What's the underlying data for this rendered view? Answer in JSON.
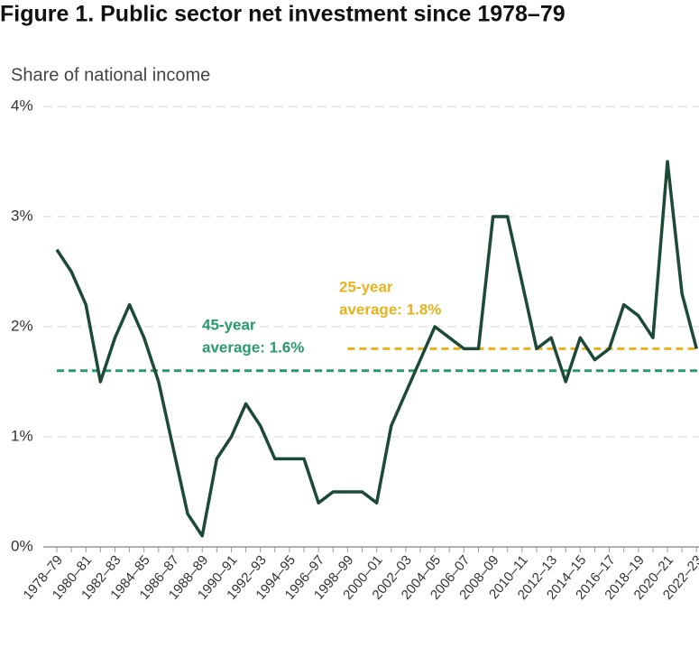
{
  "chart_data": {
    "type": "line",
    "title": "Figure 1. Public sector net investment since 1978–79",
    "subtitle": "Share of national income",
    "categories": [
      "1978–79",
      null,
      "1980–81",
      null,
      "1982–83",
      null,
      "1984–85",
      null,
      "1986–87",
      null,
      "1988–89",
      null,
      "1990–91",
      null,
      "1992–93",
      null,
      "1994–95",
      null,
      "1996–97",
      null,
      "1998–99",
      null,
      "2000–01",
      null,
      "2002–03",
      null,
      "2004–05",
      null,
      "2006–07",
      null,
      "2008–09",
      null,
      "2010–11",
      null,
      "2012–13",
      null,
      "2014–15",
      null,
      "2016–17",
      null,
      "2018–19",
      null,
      "2020–21",
      null,
      "2022–23"
    ],
    "series": [
      {
        "color": "#1c4a36",
        "values": [
          2.7,
          2.5,
          2.2,
          1.5,
          1.9,
          2.2,
          1.9,
          1.5,
          0.9,
          0.3,
          0.1,
          0.8,
          1.0,
          1.3,
          1.1,
          0.8,
          0.8,
          0.8,
          0.4,
          0.5,
          0.5,
          0.5,
          0.4,
          1.1,
          1.4,
          1.7,
          2.0,
          1.9,
          1.8,
          1.8,
          3.0,
          3.0,
          2.4,
          1.8,
          1.9,
          1.5,
          1.9,
          1.7,
          1.8,
          2.2,
          2.1,
          1.9,
          3.5,
          2.3,
          1.8
        ]
      }
    ],
    "reference_lines": [
      {
        "lines": [
          "45-year",
          "average: 1.6%"
        ],
        "value": 1.6,
        "start": "1978–79",
        "color": "#2a9a6c"
      },
      {
        "lines": [
          "25-year",
          "average: 1.8%"
        ],
        "value": 1.8,
        "start": "1998–99",
        "color": "#e8b21e"
      }
    ],
    "ylim": [
      0,
      4
    ],
    "yticks": [
      {
        "value": 0,
        "label": "0%"
      },
      {
        "value": 1,
        "label": "1%"
      },
      {
        "value": 2,
        "label": "2%"
      },
      {
        "value": 3,
        "label": "3%"
      },
      {
        "value": 4,
        "label": "4%"
      }
    ],
    "grid": true
  }
}
